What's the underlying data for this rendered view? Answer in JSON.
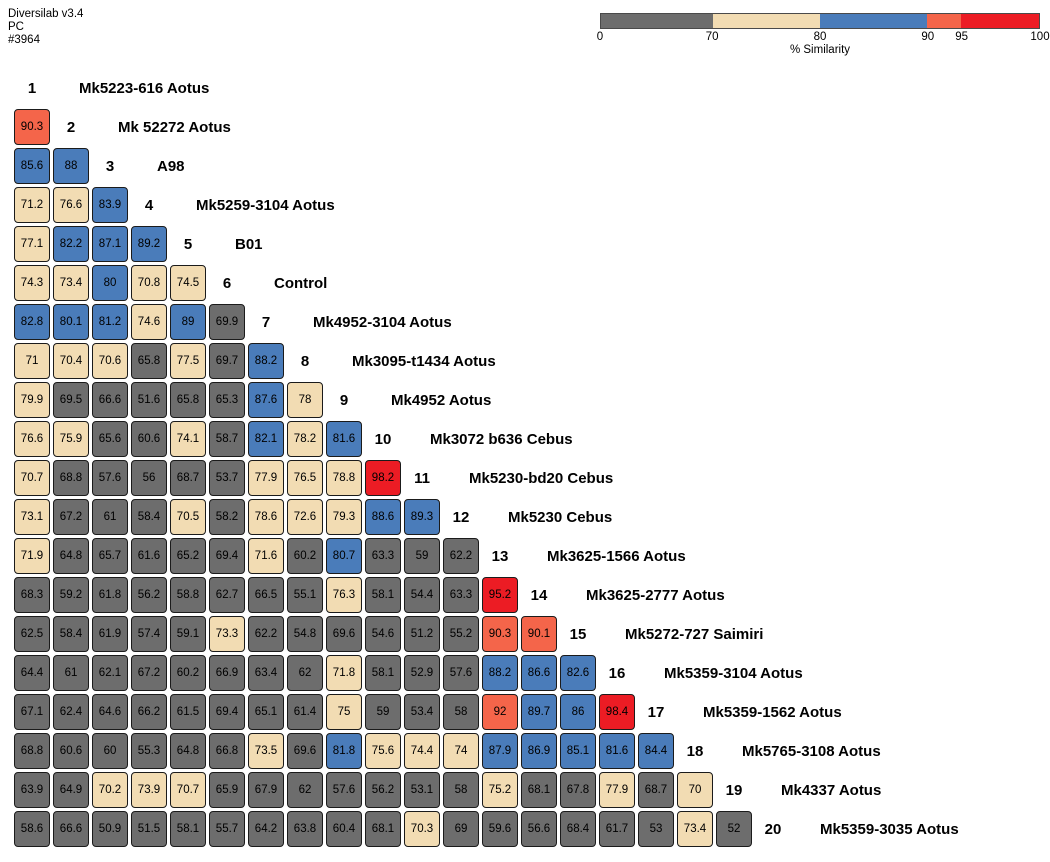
{
  "header": {
    "product": "Diversilab v3.4",
    "platform": "PC",
    "run_id": "#3964"
  },
  "legend": {
    "title": "% Similarity",
    "ticks": [
      {
        "label": "0",
        "pos_pct": 0
      },
      {
        "label": "70",
        "pos_pct": 25.5
      },
      {
        "label": "80",
        "pos_pct": 50
      },
      {
        "label": "90",
        "pos_pct": 74.5
      },
      {
        "label": "95",
        "pos_pct": 82.2
      },
      {
        "label": "100",
        "pos_pct": 100
      }
    ],
    "segments": [
      {
        "range": "0-70",
        "color": "#6d6d6d",
        "width_pct": 25.5
      },
      {
        "range": "70-80",
        "color": "#f2dcb3",
        "width_pct": 24.5
      },
      {
        "range": "80-90",
        "color": "#4a7cba",
        "width_pct": 24.5
      },
      {
        "range": "90-95",
        "color": "#f4654a",
        "width_pct": 7.7
      },
      {
        "range": "95-100",
        "color": "#ec1c24",
        "width_pct": 17.8
      }
    ]
  },
  "chart_data": {
    "type": "heatmap",
    "title": "% Similarity",
    "description": "Lower-triangular pairwise % similarity matrix of 20 samples (Diversilab rep-PCR report)",
    "value_range": [
      0,
      100
    ],
    "color_bins": [
      {
        "min": 0,
        "max": 70,
        "color": "#6d6d6d",
        "label": "0-70"
      },
      {
        "min": 70,
        "max": 80,
        "color": "#f2dcb3",
        "label": "70-80"
      },
      {
        "min": 80,
        "max": 90,
        "color": "#4a7cba",
        "label": "80-90"
      },
      {
        "min": 90,
        "max": 95,
        "color": "#f4654a",
        "label": "90-95"
      },
      {
        "min": 95,
        "max": 100.01,
        "color": "#ec1c24",
        "label": "95-100"
      }
    ],
    "samples": [
      "Mk5223-616 Aotus",
      "Mk 52272 Aotus",
      "A98",
      "Mk5259-3104 Aotus",
      "B01",
      "Control",
      "Mk4952-3104 Aotus",
      "Mk3095-t1434 Aotus",
      "Mk4952 Aotus",
      "Mk3072 b636 Cebus",
      "Mk5230-bd20 Cebus",
      "Mk5230 Cebus",
      "Mk3625-1566 Aotus",
      "Mk3625-2777 Aotus",
      "Mk5272-727 Saimiri",
      "Mk5359-3104 Aotus",
      "Mk5359-1562 Aotus",
      "Mk5765-3108 Aotus",
      "Mk4337 Aotus",
      "Mk5359-3035 Aotus"
    ],
    "rows": [
      [],
      [
        90.3
      ],
      [
        85.6,
        88
      ],
      [
        71.2,
        76.6,
        83.9
      ],
      [
        77.1,
        82.2,
        87.1,
        89.2
      ],
      [
        74.3,
        73.4,
        80,
        70.8,
        74.5
      ],
      [
        82.8,
        80.1,
        81.2,
        74.6,
        89,
        69.9
      ],
      [
        71,
        70.4,
        70.6,
        65.8,
        77.5,
        69.7,
        88.2
      ],
      [
        79.9,
        69.5,
        66.6,
        51.6,
        65.8,
        65.3,
        87.6,
        78
      ],
      [
        76.6,
        75.9,
        65.6,
        60.6,
        74.1,
        58.7,
        82.1,
        78.2,
        81.6
      ],
      [
        70.7,
        68.8,
        57.6,
        56,
        68.7,
        53.7,
        77.9,
        76.5,
        78.8,
        98.2
      ],
      [
        73.1,
        67.2,
        61,
        58.4,
        70.5,
        58.2,
        78.6,
        72.6,
        79.3,
        88.6,
        89.3
      ],
      [
        71.9,
        64.8,
        65.7,
        61.6,
        65.2,
        69.4,
        71.6,
        60.2,
        80.7,
        63.3,
        59,
        62.2
      ],
      [
        68.3,
        59.2,
        61.8,
        56.2,
        58.8,
        62.7,
        66.5,
        55.1,
        76.3,
        58.1,
        54.4,
        63.3,
        95.2
      ],
      [
        62.5,
        58.4,
        61.9,
        57.4,
        59.1,
        73.3,
        62.2,
        54.8,
        69.6,
        54.6,
        51.2,
        55.2,
        90.3,
        90.1
      ],
      [
        64.4,
        61,
        62.1,
        67.2,
        60.2,
        66.9,
        63.4,
        62,
        71.8,
        58.1,
        52.9,
        57.6,
        88.2,
        86.6,
        82.6
      ],
      [
        67.1,
        62.4,
        64.6,
        66.2,
        61.5,
        69.4,
        65.1,
        61.4,
        75,
        59,
        53.4,
        58,
        92,
        89.7,
        86,
        98.4
      ],
      [
        68.8,
        60.6,
        60,
        55.3,
        64.8,
        66.8,
        73.5,
        69.6,
        81.8,
        75.6,
        74.4,
        74,
        87.9,
        86.9,
        85.1,
        81.6,
        84.4
      ],
      [
        63.9,
        64.9,
        70.2,
        73.9,
        70.7,
        65.9,
        67.9,
        62,
        57.6,
        56.2,
        53.1,
        58,
        75.2,
        68.1,
        67.8,
        77.9,
        68.7,
        70
      ],
      [
        58.6,
        66.6,
        50.9,
        51.5,
        58.1,
        55.7,
        64.2,
        63.8,
        60.4,
        68.1,
        70.3,
        69,
        59.6,
        56.6,
        68.4,
        61.7,
        53,
        73.4,
        52
      ]
    ]
  }
}
